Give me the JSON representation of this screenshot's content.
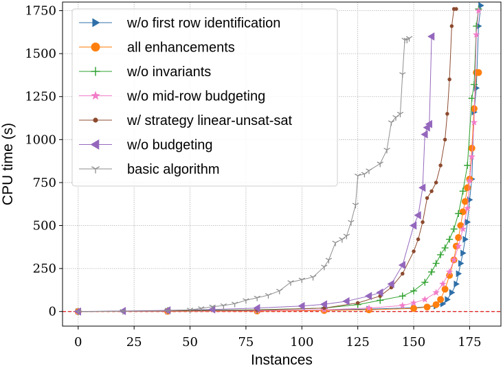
{
  "chart_data": {
    "type": "line",
    "xlabel": "Instances",
    "ylabel": "CPU time (s)",
    "xlim": [
      -7,
      189
    ],
    "ylim": [
      -85,
      1800
    ],
    "xticks": [
      0,
      25,
      50,
      75,
      100,
      125,
      150,
      175
    ],
    "yticks": [
      0,
      250,
      500,
      750,
      1000,
      1250,
      1500,
      1750
    ],
    "xtick_labels": [
      "0",
      "25",
      "50",
      "75",
      "100",
      "125",
      "150",
      "175"
    ],
    "ytick_labels": [
      "0",
      "250",
      "500",
      "750",
      "1000",
      "1250",
      "1500",
      "1750"
    ],
    "grid": true,
    "reference_line": {
      "y": 0,
      "color": "#e01010",
      "style": "dashed"
    },
    "legend_position": "top-left",
    "series": [
      {
        "name": "w/o first row identification",
        "color": "#2f6fa8",
        "marker": "triangle-right",
        "x": [
          0,
          40,
          80,
          110,
          130,
          150,
          160,
          163,
          165,
          167,
          169,
          170,
          171,
          172,
          173,
          174,
          175,
          176,
          177,
          178,
          179,
          180
        ],
        "y": [
          0,
          2,
          5,
          9,
          14,
          22,
          32,
          45,
          70,
          110,
          160,
          220,
          280,
          340,
          420,
          520,
          650,
          770,
          1160,
          1300,
          1660,
          1780
        ]
      },
      {
        "name": "all enhancements",
        "color": "#ff7f0e",
        "marker": "circle",
        "x": [
          0,
          40,
          80,
          110,
          130,
          150,
          156,
          160,
          162,
          164,
          166,
          168,
          169,
          170,
          171,
          172,
          173,
          174,
          175,
          176,
          177,
          178,
          179
        ],
        "y": [
          0,
          1,
          3,
          6,
          10,
          18,
          26,
          40,
          70,
          130,
          210,
          300,
          380,
          430,
          500,
          580,
          640,
          720,
          770,
          950,
          1180,
          1390,
          1390
        ]
      },
      {
        "name": "w/o invariants",
        "color": "#2ca02c",
        "marker": "plus",
        "x": [
          0,
          40,
          80,
          110,
          125,
          135,
          145,
          150,
          155,
          158,
          160,
          162,
          164,
          166,
          168,
          170,
          172,
          174,
          176,
          177,
          178,
          179
        ],
        "y": [
          0,
          5,
          10,
          20,
          40,
          65,
          90,
          120,
          170,
          230,
          280,
          330,
          370,
          420,
          480,
          570,
          700,
          850,
          1240,
          1320,
          1660,
          1760
        ]
      },
      {
        "name": "w/o mid-row budgeting",
        "color": "#f17cc8",
        "marker": "star",
        "x": [
          0,
          40,
          80,
          110,
          130,
          145,
          150,
          155,
          160,
          163,
          166,
          168,
          170,
          172,
          174,
          175,
          176,
          177,
          178,
          179
        ],
        "y": [
          0,
          2,
          5,
          10,
          20,
          35,
          50,
          70,
          110,
          160,
          230,
          300,
          380,
          480,
          600,
          760,
          900,
          1100,
          1610,
          1750
        ]
      },
      {
        "name": "w/ strategy linear-unsat-sat",
        "color": "#8c4a2f",
        "marker": "small-circle",
        "x": [
          0,
          40,
          80,
          110,
          125,
          135,
          140,
          145,
          150,
          152,
          154,
          156,
          158,
          160,
          162,
          164,
          165,
          166,
          167,
          168,
          169
        ],
        "y": [
          0,
          3,
          8,
          20,
          50,
          90,
          140,
          220,
          350,
          420,
          520,
          660,
          700,
          750,
          850,
          1000,
          1150,
          1350,
          1660,
          1760,
          1760
        ]
      },
      {
        "name": "w/o budgeting",
        "color": "#9467bd",
        "marker": "triangle-left",
        "x": [
          0,
          20,
          40,
          60,
          80,
          100,
          110,
          120,
          130,
          135,
          140,
          145,
          150,
          152,
          154,
          155,
          156,
          157,
          158
        ],
        "y": [
          0,
          3,
          7,
          12,
          20,
          32,
          42,
          60,
          90,
          110,
          160,
          270,
          500,
          560,
          720,
          1030,
          1070,
          1090,
          1600
        ]
      },
      {
        "name": "basic algorithm",
        "color": "#8e8e8e",
        "marker": "tri-down",
        "x": [
          0,
          20,
          40,
          50,
          55,
          60,
          65,
          70,
          75,
          80,
          85,
          90,
          95,
          100,
          105,
          110,
          112,
          115,
          118,
          120,
          122,
          124,
          125,
          128,
          130,
          135,
          138,
          140,
          142,
          144,
          145,
          146,
          147,
          148
        ],
        "y": [
          0,
          2,
          5,
          10,
          18,
          28,
          35,
          45,
          65,
          80,
          95,
          120,
          170,
          185,
          200,
          260,
          300,
          400,
          420,
          440,
          520,
          620,
          790,
          800,
          820,
          860,
          940,
          1100,
          1130,
          1150,
          1380,
          1580,
          1580,
          1590
        ]
      }
    ]
  }
}
